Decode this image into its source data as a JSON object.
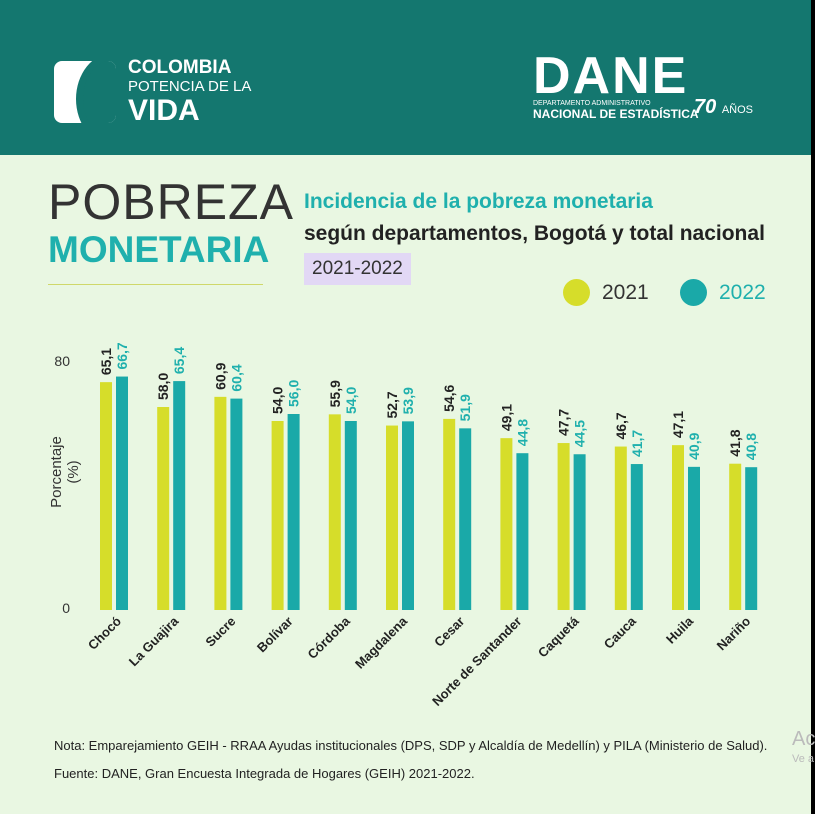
{
  "header": {
    "logo_left": {
      "line1": "COLOMBIA",
      "line2": "POTENCIA DE LA",
      "line3": "VIDA"
    },
    "logo_right": {
      "name": "DANE",
      "sub1": "DEPARTAMENTO ADMINISTRATIVO",
      "sub2": "NACIONAL DE ESTADÍSTICA",
      "anniv": "70",
      "anniv_suffix": "AÑOS"
    }
  },
  "heading": {
    "line1": "POBREZA",
    "line2": "MONETARIA"
  },
  "chart_data": {
    "type": "bar",
    "title": "Incidencia de la pobreza monetaria",
    "subtitle": "según departamentos, Bogotá y total nacional",
    "period": "2021-2022",
    "ylabel": "Porcentaje (%)",
    "ylim": [
      0,
      80
    ],
    "yticks": [
      "0",
      "80"
    ],
    "legend_position": "top-right",
    "categories": [
      "Chocó",
      "La Guajira",
      "Sucre",
      "Bolívar",
      "Córdoba",
      "Magdalena",
      "Cesar",
      "Norte de Santander",
      "Caquetá",
      "Cauca",
      "Huila",
      "Nariño"
    ],
    "series": [
      {
        "name": "2021",
        "color": "#d6dd2a",
        "label_color": "#222222",
        "values": [
          65.1,
          58.0,
          60.9,
          54.0,
          55.9,
          52.7,
          54.6,
          49.1,
          47.7,
          46.7,
          47.1,
          41.8
        ],
        "labels": [
          "65,1",
          "58,0",
          "60,9",
          "54,0",
          "55,9",
          "52,7",
          "54,6",
          "49,1",
          "47,7",
          "46,7",
          "47,1",
          "41,8"
        ]
      },
      {
        "name": "2022",
        "color": "#1aa9a8",
        "label_color": "#1fb0ad",
        "values": [
          66.7,
          65.4,
          60.4,
          56.0,
          54.0,
          53.9,
          51.9,
          44.8,
          44.5,
          41.7,
          40.9,
          40.8
        ],
        "labels": [
          "66,7",
          "65,4",
          "60,4",
          "56,0",
          "54,0",
          "53,9",
          "51,9",
          "44,8",
          "44,5",
          "41,7",
          "40,9",
          "40,8"
        ]
      }
    ]
  },
  "notes": {
    "nota": "Nota: Emparejamiento GEIH - RRAA Ayudas institucionales (DPS, SDP y Alcaldía de Medellín) y PILA (Ministerio de Salud).",
    "fuente": "Fuente: DANE, Gran Encuesta Integrada de Hogares (GEIH) 2021-2022."
  },
  "watermark": {
    "line1": "Ac",
    "line2": "Ve a"
  }
}
